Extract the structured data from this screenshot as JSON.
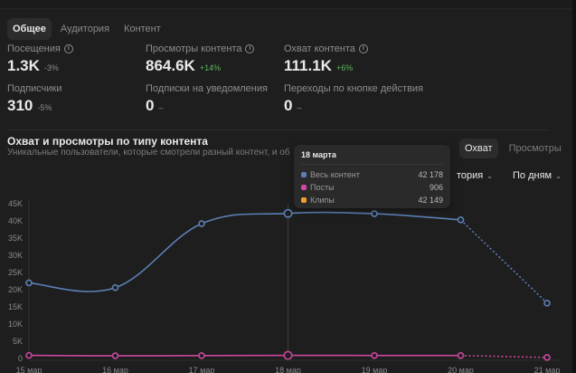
{
  "tabs": [
    {
      "label": "Общее",
      "active": true
    },
    {
      "label": "Аудитория",
      "active": false
    },
    {
      "label": "Контент",
      "active": false
    }
  ],
  "metrics": [
    {
      "label": "Посещения",
      "info": true,
      "value": "1.3K",
      "delta": "-3%",
      "positive": false
    },
    {
      "label": "Просмотры контента",
      "info": true,
      "value": "864.6K",
      "delta": "+14%",
      "positive": true
    },
    {
      "label": "Охват контента",
      "info": true,
      "value": "111.1K",
      "delta": "+6%",
      "positive": true
    },
    {
      "label": "Подписчики",
      "info": false,
      "value": "310",
      "delta": "-5%",
      "positive": false
    },
    {
      "label": "Подписки на уведомления",
      "info": false,
      "value": "0",
      "delta": "–",
      "positive": false
    },
    {
      "label": "Переходы по кнопке действия",
      "info": false,
      "value": "0",
      "delta": "–",
      "positive": false
    }
  ],
  "section": {
    "title": "Охват и просмотры по типу контента",
    "subtitle": "Уникальные пользователи, которые смотрели разный контент, и об"
  },
  "segment": [
    {
      "label": "Охват",
      "active": true
    },
    {
      "label": "Просмотры",
      "active": false
    }
  ],
  "dropdowns": {
    "category": "тория",
    "period": "По дням"
  },
  "tooltip": {
    "title": "18 марта",
    "rows": [
      {
        "name": "Весь контент",
        "value": "42 178",
        "color": "#5b7fb5"
      },
      {
        "name": "Посты",
        "value": "906",
        "color": "#d147a3"
      },
      {
        "name": "Клипы",
        "value": "42 149",
        "color": "#f0a030"
      }
    ]
  },
  "chart_data": {
    "type": "line",
    "x": [
      "15 мар",
      "16 мар",
      "17 мар",
      "18 мар",
      "19 мар",
      "20 мар",
      "21 мар"
    ],
    "yticks": [
      "0",
      "5K",
      "10K",
      "15K",
      "20K",
      "25K",
      "30K",
      "35K",
      "40K",
      "45K"
    ],
    "ylim": [
      0,
      45000
    ],
    "highlight_index": 3,
    "dotted_from_index": 5,
    "series": [
      {
        "name": "Весь контент",
        "color": "#5b7fb5",
        "values": [
          22000,
          20600,
          39200,
          42178,
          42100,
          40300,
          16100
        ]
      },
      {
        "name": "Посты",
        "color": "#c9479d",
        "values": [
          900,
          800,
          850,
          906,
          880,
          870,
          300
        ]
      }
    ]
  }
}
